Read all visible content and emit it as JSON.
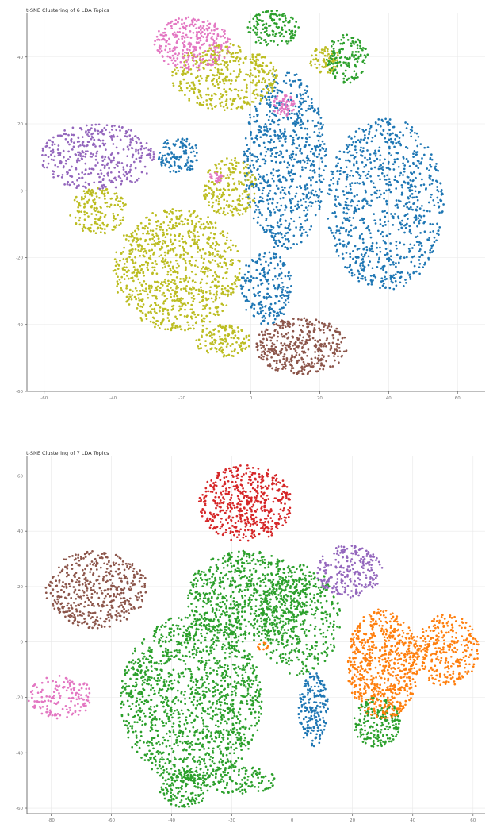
{
  "chart_data": [
    {
      "type": "scatter",
      "title": "t-SNE Clustering of 6 LDA Topics",
      "xlabel": "",
      "ylabel": "",
      "xlim": [
        -65,
        68
      ],
      "ylim": [
        -60,
        53
      ],
      "xticks": [
        -60,
        -40,
        -20,
        0,
        20,
        40,
        60
      ],
      "yticks": [
        40,
        20,
        0,
        -20,
        -40,
        -60
      ],
      "grid": true,
      "legend": "none",
      "colors": {
        "blue": "#1f77b4",
        "olive": "#bcbd22",
        "brown": "#8c564b",
        "purple": "#9467bd",
        "pink": "#e377c2",
        "green": "#2ca02c"
      },
      "series": [
        {
          "color": "#1f77b4",
          "clusters": [
            {
              "x": [
                -2,
                22
              ],
              "y": [
                -18,
                36
              ],
              "n": 750
            },
            {
              "x": [
                22,
                56
              ],
              "y": [
                -30,
                22
              ],
              "n": 850
            },
            {
              "x": [
                -3,
                12
              ],
              "y": [
                -40,
                -18
              ],
              "n": 220
            },
            {
              "x": [
                -27,
                -15
              ],
              "y": [
                5,
                16
              ],
              "n": 120
            }
          ]
        },
        {
          "color": "#bcbd22",
          "clusters": [
            {
              "x": [
                -40,
                -3
              ],
              "y": [
                -42,
                -5
              ],
              "n": 900
            },
            {
              "x": [
                -14,
                2
              ],
              "y": [
                -8,
                10
              ],
              "n": 200
            },
            {
              "x": [
                -53,
                -36
              ],
              "y": [
                -13,
                1
              ],
              "n": 170
            },
            {
              "x": [
                -23,
                8
              ],
              "y": [
                24,
                44
              ],
              "n": 420
            },
            {
              "x": [
                17,
                26
              ],
              "y": [
                35,
                43
              ],
              "n": 80
            },
            {
              "x": [
                -16,
                0
              ],
              "y": [
                -50,
                -40
              ],
              "n": 130
            }
          ]
        },
        {
          "color": "#8c564b",
          "clusters": [
            {
              "x": [
                1,
                28
              ],
              "y": [
                -55,
                -38
              ],
              "n": 400
            }
          ]
        },
        {
          "color": "#9467bd",
          "clusters": [
            {
              "x": [
                -61,
                -28
              ],
              "y": [
                0,
                20
              ],
              "n": 380
            }
          ]
        },
        {
          "color": "#e377c2",
          "clusters": [
            {
              "x": [
                -28,
                -6
              ],
              "y": [
                36,
                52
              ],
              "n": 300
            },
            {
              "x": [
                6,
                13
              ],
              "y": [
                22,
                29
              ],
              "n": 60
            },
            {
              "x": [
                -12,
                -8
              ],
              "y": [
                2,
                6
              ],
              "n": 25
            }
          ]
        },
        {
          "color": "#2ca02c",
          "clusters": [
            {
              "x": [
                -1,
                14
              ],
              "y": [
                43,
                54
              ],
              "n": 140
            },
            {
              "x": [
                22,
                34
              ],
              "y": [
                32,
                47
              ],
              "n": 140
            }
          ]
        }
      ]
    },
    {
      "type": "scatter",
      "title": "t-SNE Clustering of 7 LDA Topics",
      "xlabel": "",
      "ylabel": "",
      "xlim": [
        -88,
        64
      ],
      "ylim": [
        -62,
        67
      ],
      "xticks": [
        -80,
        -60,
        -40,
        -20,
        0,
        20,
        40,
        60
      ],
      "yticks": [
        60,
        40,
        20,
        0,
        -20,
        -40,
        -60
      ],
      "grid": true,
      "legend": "none",
      "colors": {
        "green": "#2ca02c",
        "orange": "#ff7f0e",
        "red": "#d62728",
        "brown": "#8c564b",
        "purple": "#9467bd",
        "pink": "#e377c2",
        "blue": "#1f77b4"
      },
      "series": [
        {
          "color": "#2ca02c",
          "clusters": [
            {
              "x": [
                -57,
                -10
              ],
              "y": [
                -52,
                10
              ],
              "n": 1400
            },
            {
              "x": [
                -35,
                5
              ],
              "y": [
                0,
                33
              ],
              "n": 700
            },
            {
              "x": [
                -12,
                16
              ],
              "y": [
                -12,
                28
              ],
              "n": 450
            },
            {
              "x": [
                -44,
                -28
              ],
              "y": [
                -60,
                -46
              ],
              "n": 150
            },
            {
              "x": [
                20,
                36
              ],
              "y": [
                -38,
                -20
              ],
              "n": 200
            },
            {
              "x": [
                -30,
                -5
              ],
              "y": [
                -55,
                -45
              ],
              "n": 120
            }
          ]
        },
        {
          "color": "#ff7f0e",
          "clusters": [
            {
              "x": [
                18,
                42
              ],
              "y": [
                -28,
                12
              ],
              "n": 650
            },
            {
              "x": [
                40,
                62
              ],
              "y": [
                -16,
                10
              ],
              "n": 300
            },
            {
              "x": [
                -12,
                -8
              ],
              "y": [
                -3,
                0
              ],
              "n": 15
            }
          ]
        },
        {
          "color": "#d62728",
          "clusters": [
            {
              "x": [
                -31,
                0
              ],
              "y": [
                36,
                64
              ],
              "n": 520
            }
          ]
        },
        {
          "color": "#8c564b",
          "clusters": [
            {
              "x": [
                -82,
                -48
              ],
              "y": [
                5,
                33
              ],
              "n": 480
            }
          ]
        },
        {
          "color": "#9467bd",
          "clusters": [
            {
              "x": [
                8,
                30
              ],
              "y": [
                16,
                35
              ],
              "n": 230
            }
          ]
        },
        {
          "color": "#e377c2",
          "clusters": [
            {
              "x": [
                -88,
                -66
              ],
              "y": [
                -28,
                -12
              ],
              "n": 150
            }
          ]
        },
        {
          "color": "#1f77b4",
          "clusters": [
            {
              "x": [
                2,
                12
              ],
              "y": [
                -38,
                -11
              ],
              "n": 200
            }
          ]
        }
      ]
    }
  ]
}
